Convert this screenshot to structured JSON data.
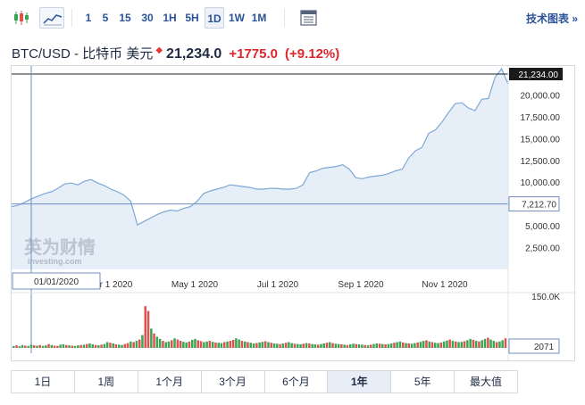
{
  "toolbar": {
    "icons": [
      "candlestick-icon",
      "area-line-icon"
    ],
    "intervals": [
      "1",
      "5",
      "15",
      "30",
      "1H",
      "5H",
      "1D",
      "1W",
      "1M"
    ],
    "active_interval": "1D",
    "tech_chart_label": "技术图表 »"
  },
  "header": {
    "symbol": "BTC/USD - 比特币 美元",
    "marker": "◆",
    "price": "21,234.0",
    "change": "+1775.0",
    "change_pct": "(+9.12%)",
    "change_color": "#e0262d"
  },
  "watermark": {
    "logo_text": "英为财情",
    "sub_text": "Investing.com"
  },
  "chart_data": {
    "type": "area",
    "title": "",
    "xlabel": "",
    "ylabel": "",
    "x_ticks": [
      "Mar 1 2020",
      "May 1 2020",
      "Jul 1 2020",
      "Sep 1 2020",
      "Nov 1 2020"
    ],
    "cursor_date_label": "01/01/2020",
    "ylim": [
      0,
      22500
    ],
    "y_ticks": [
      2500,
      5000,
      7500,
      10000,
      12500,
      15000,
      17500,
      20000
    ],
    "y_tick_labels": [
      "2,500.00",
      "5,000.00",
      "",
      "10,000.00",
      "12,500.00",
      "15,000.00",
      "17,500.00",
      "20,000.00"
    ],
    "last_price_label": "21,234.00",
    "cursor_price_label": "7,212.70",
    "line_color": "#7fa8d6",
    "fill_color": "#e6eef7",
    "series": [
      {
        "values": [
          7200,
          7350,
          7700,
          8100,
          8400,
          8700,
          8900,
          9300,
          9800,
          9900,
          9700,
          10100,
          10300,
          9900,
          9600,
          9200,
          8900,
          8500,
          7800,
          5100,
          5500,
          5900,
          6300,
          6600,
          6800,
          6700,
          7000,
          7200,
          7800,
          8700,
          9000,
          9200,
          9400,
          9700,
          9600,
          9500,
          9400,
          9200,
          9200,
          9300,
          9300,
          9200,
          9200,
          9300,
          9700,
          11100,
          11300,
          11600,
          11700,
          11800,
          12000,
          11500,
          10500,
          10400,
          10600,
          10700,
          10800,
          11000,
          11300,
          11500,
          12800,
          13600,
          14000,
          15600,
          16000,
          16900,
          18000,
          19000,
          19100,
          18500,
          18200,
          19500,
          19600,
          22000,
          23000,
          21234
        ]
      }
    ],
    "volume": {
      "ylim": [
        0,
        150000
      ],
      "top_label": "150.0K",
      "current_label": "2071",
      "up_color": "#3aa655",
      "down_color": "#e0524f",
      "values": [
        6,
        8,
        5,
        9,
        7,
        6,
        10,
        8,
        7,
        9,
        6,
        8,
        12,
        9,
        7,
        6,
        10,
        11,
        9,
        8,
        7,
        6,
        8,
        9,
        10,
        12,
        14,
        11,
        9,
        8,
        10,
        12,
        18,
        16,
        14,
        11,
        10,
        9,
        12,
        15,
        20,
        18,
        22,
        26,
        40,
        130,
        115,
        60,
        45,
        35,
        28,
        22,
        18,
        20,
        24,
        30,
        26,
        22,
        19,
        17,
        20,
        25,
        28,
        24,
        21,
        18,
        20,
        22,
        19,
        17,
        16,
        15,
        18,
        20,
        22,
        25,
        30,
        26,
        22,
        20,
        18,
        16,
        14,
        15,
        17,
        19,
        21,
        18,
        16,
        14,
        13,
        12,
        14,
        16,
        18,
        15,
        13,
        12,
        11,
        13,
        15,
        14,
        12,
        11,
        10,
        12,
        14,
        16,
        18,
        15,
        13,
        12,
        11,
        10,
        9,
        11,
        13,
        12,
        11,
        10,
        9,
        8,
        10,
        12,
        14,
        13,
        12,
        11,
        12,
        14,
        16,
        18,
        20,
        17,
        15,
        14,
        13,
        15,
        17,
        19,
        22,
        24,
        20,
        18,
        16,
        15,
        17,
        20,
        23,
        26,
        22,
        20,
        18,
        19,
        21,
        24,
        28,
        25,
        22,
        20,
        24,
        28,
        32,
        26,
        22,
        18,
        20,
        24,
        30
      ],
      "up": [
        1,
        0,
        1,
        1,
        0,
        1,
        1,
        0,
        1,
        0,
        1,
        1,
        0,
        1,
        0,
        0,
        1,
        1,
        0,
        1,
        0,
        1,
        1,
        0,
        1,
        0,
        1,
        1,
        0,
        1,
        0,
        1,
        1,
        0,
        1,
        0,
        1,
        1,
        0,
        0,
        1,
        0,
        1,
        0,
        1,
        0,
        0,
        1,
        0,
        1,
        1,
        0,
        1,
        1,
        0,
        1,
        0,
        0,
        1,
        1,
        0,
        1,
        1,
        0,
        0,
        1,
        1,
        0,
        1,
        0,
        1,
        1,
        0,
        1,
        0,
        0,
        1,
        1,
        0,
        1,
        0,
        1,
        1,
        0,
        1,
        1,
        0,
        1,
        0,
        1,
        1,
        0,
        1,
        0,
        1,
        1,
        0,
        1,
        1,
        0,
        1,
        0,
        1,
        1,
        0,
        1,
        1,
        0,
        1,
        0,
        1,
        1,
        0,
        1,
        0,
        1,
        1,
        0,
        1,
        1,
        0,
        1,
        0,
        1,
        1,
        0,
        1,
        0,
        1,
        1,
        0,
        1,
        1,
        0,
        1,
        0,
        1,
        1,
        0,
        1,
        1,
        0,
        1,
        0,
        1,
        1,
        0,
        1,
        1,
        0,
        1,
        0,
        1,
        1,
        0,
        1,
        1,
        0,
        1,
        0,
        1,
        1,
        0,
        1,
        1,
        0,
        1,
        1,
        0
      ]
    }
  },
  "periods": [
    "1日",
    "1周",
    "1个月",
    "3个月",
    "6个月",
    "1年",
    "5年",
    "最大值"
  ],
  "active_period": "1年"
}
